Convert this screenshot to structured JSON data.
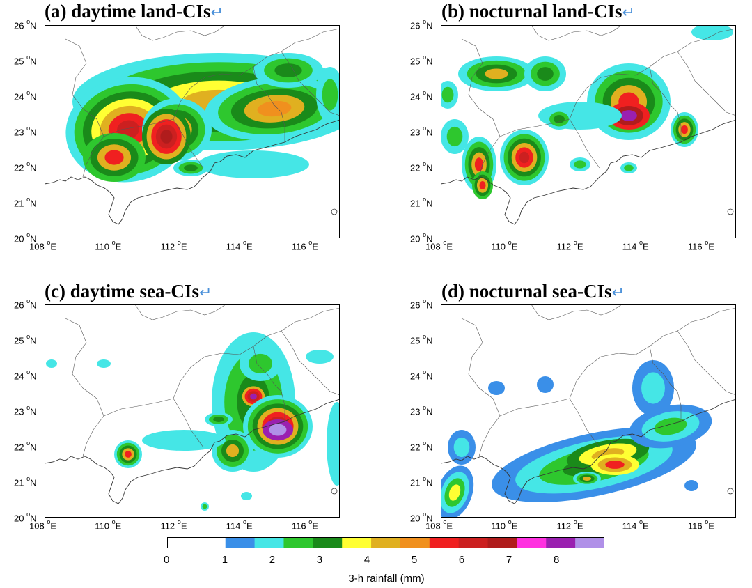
{
  "panels": [
    {
      "title": "(a) daytime land-CIs",
      "key": "a"
    },
    {
      "title": "(b) nocturnal land-CIs",
      "key": "b"
    },
    {
      "title": "(c) daytime sea-CIs",
      "key": "c"
    },
    {
      "title": "(d) nocturnal sea-CIs",
      "key": "d"
    }
  ],
  "return_symbol": "↵",
  "axes": {
    "lat_ticks": [
      {
        "value": "26",
        "suffix": "N"
      },
      {
        "value": "25",
        "suffix": "N"
      },
      {
        "value": "24",
        "suffix": "N"
      },
      {
        "value": "23",
        "suffix": "N"
      },
      {
        "value": "22",
        "suffix": "N"
      },
      {
        "value": "21",
        "suffix": "N"
      },
      {
        "value": "20",
        "suffix": "N"
      }
    ],
    "lon_ticks": [
      {
        "value": "108",
        "suffix": "E"
      },
      {
        "value": "110",
        "suffix": "E"
      },
      {
        "value": "112",
        "suffix": "E"
      },
      {
        "value": "114",
        "suffix": "E"
      },
      {
        "value": "116",
        "suffix": "E"
      }
    ],
    "lat_range": [
      20,
      26
    ],
    "lon_range": [
      108,
      117
    ],
    "degree_symbol": "o"
  },
  "colorbar": {
    "title": "3-h rainfall (mm)",
    "tick_labels": [
      "0",
      "1",
      "2",
      "3",
      "4",
      "5",
      "6",
      "7",
      "8"
    ],
    "colors": [
      "#ffffff",
      "#ffffff",
      "#3a8fe8",
      "#45e6e6",
      "#2ec72e",
      "#1a8a1a",
      "#ffff33",
      "#e0b020",
      "#f0901e",
      "#f02020",
      "#cc2020",
      "#b01c1c",
      "#ff30e0",
      "#9a20b0",
      "#b090e8"
    ]
  }
}
